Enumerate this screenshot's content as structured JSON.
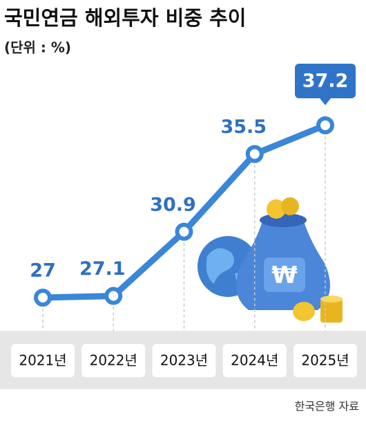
{
  "chart_data": {
    "type": "line",
    "title": "국민연금 해외투자 비중 추이",
    "subtitle": "(단위 : %)",
    "categories": [
      "2021년",
      "2022년",
      "2023년",
      "2024년",
      "2025년"
    ],
    "values": [
      27,
      27.1,
      30.9,
      35.5,
      37.2
    ],
    "color": "#3a86d8",
    "source": "한국은행 자료"
  }
}
